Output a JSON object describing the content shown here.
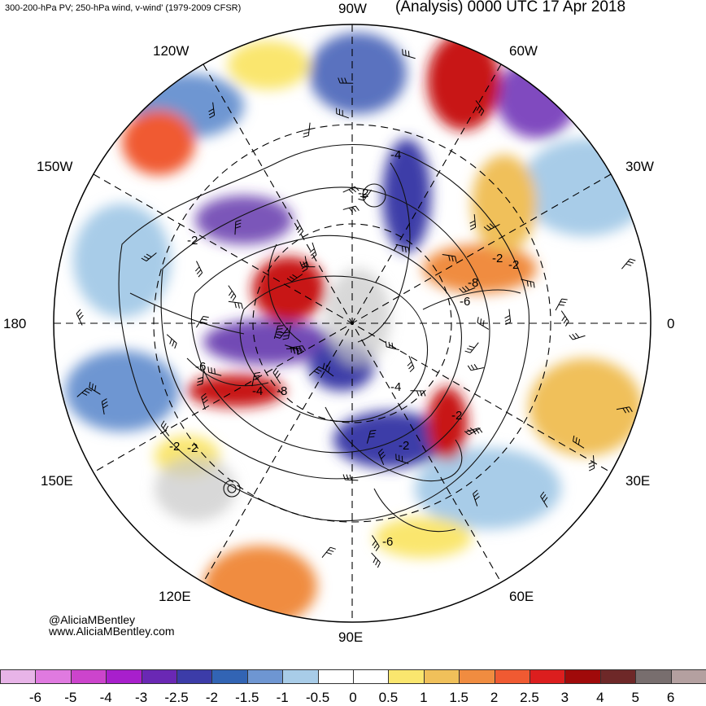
{
  "header": {
    "left_text": "300-200-hPa PV; 250-hPa wind, v-wind' (1979-2009 CFSR)",
    "right_text": "(Analysis) 0000 UTC 17 Apr 2018"
  },
  "credits": {
    "handle": "@AliciaMBentley",
    "website": "www.AliciaMBentley.com"
  },
  "longitude_labels": {
    "top": "90W",
    "top_right": "60W",
    "right_upper": "30W",
    "right": "0",
    "right_lower": "30E",
    "bottom_right": "60E",
    "bottom": "90E",
    "bottom_left": "120E",
    "left_lower": "150E",
    "left": "180",
    "left_upper": "150W",
    "top_left": "120W"
  },
  "contour_labels": [
    "-2",
    "-4",
    "-6",
    "-8",
    "-4",
    "-2",
    "-2",
    "-6",
    "-2",
    "-2",
    "-4",
    "-2",
    "-6",
    "-8",
    "-2",
    "-2"
  ],
  "colorbar": {
    "labels": [
      "-6",
      "-5",
      "-4",
      "-3",
      "-2.5",
      "-2",
      "-1.5",
      "-1",
      "-0.5",
      "0",
      "0.5",
      "1",
      "1.5",
      "2",
      "2.5",
      "3",
      "4",
      "5",
      "6"
    ],
    "colors": [
      "#e8b4e8",
      "#e07ae0",
      "#cc44cc",
      "#a81fcc",
      "#6a28b4",
      "#3c3ca8",
      "#3264b4",
      "#6e96d2",
      "#a8cce8",
      "#ffffff",
      "#ffffff",
      "#fae66e",
      "#f0c05a",
      "#f08c40",
      "#f05a32",
      "#dc1e1e",
      "#a00a0a",
      "#6e2828",
      "#786e6e",
      "#b4a0a0"
    ]
  },
  "colors": {
    "negative_strong": "#5a2aa8",
    "negative": "#3c5ab4",
    "negative_weak": "#a8cce8",
    "positive_weak": "#fae66e",
    "positive": "#f08c40",
    "positive_strong": "#c81414",
    "land": "#c8c8c8"
  }
}
